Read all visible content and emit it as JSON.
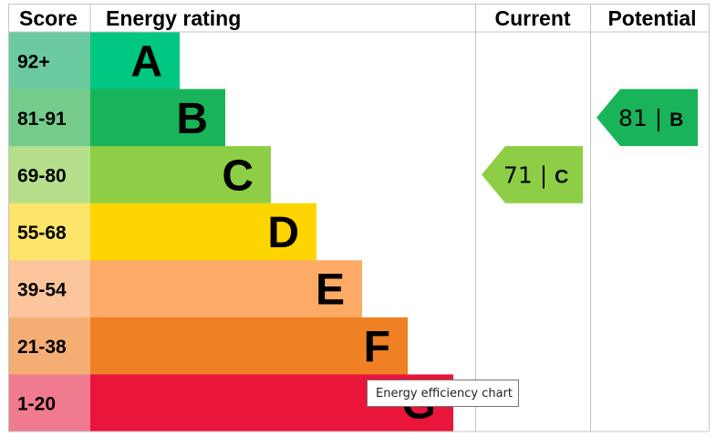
{
  "chart_data": {
    "type": "bar",
    "headers": {
      "score": "Score",
      "rating": "Energy rating",
      "current": "Current",
      "potential": "Potential"
    },
    "bands": [
      {
        "range": "92+",
        "letter": "A",
        "bar_color": "#00c781",
        "score_color": "#6ccaa0"
      },
      {
        "range": "81-91",
        "letter": "B",
        "bar_color": "#19b459",
        "score_color": "#75cb8c"
      },
      {
        "range": "69-80",
        "letter": "C",
        "bar_color": "#8dce46",
        "score_color": "#b5df8a"
      },
      {
        "range": "55-68",
        "letter": "D",
        "bar_color": "#ffd500",
        "score_color": "#fde46a"
      },
      {
        "range": "39-54",
        "letter": "E",
        "bar_color": "#fcaa65",
        "score_color": "#fcc59c"
      },
      {
        "range": "21-38",
        "letter": "F",
        "bar_color": "#ef8023",
        "score_color": "#f4ae74"
      },
      {
        "range": "1-20",
        "letter": "G",
        "bar_color": "#e9153b",
        "score_color": "#f07b8f"
      }
    ],
    "current": {
      "value": 71,
      "band": "C",
      "color": "#8dce46"
    },
    "potential": {
      "value": 81,
      "band": "B",
      "color": "#19b459"
    }
  },
  "tooltip": {
    "text": "Energy efficiency chart"
  }
}
